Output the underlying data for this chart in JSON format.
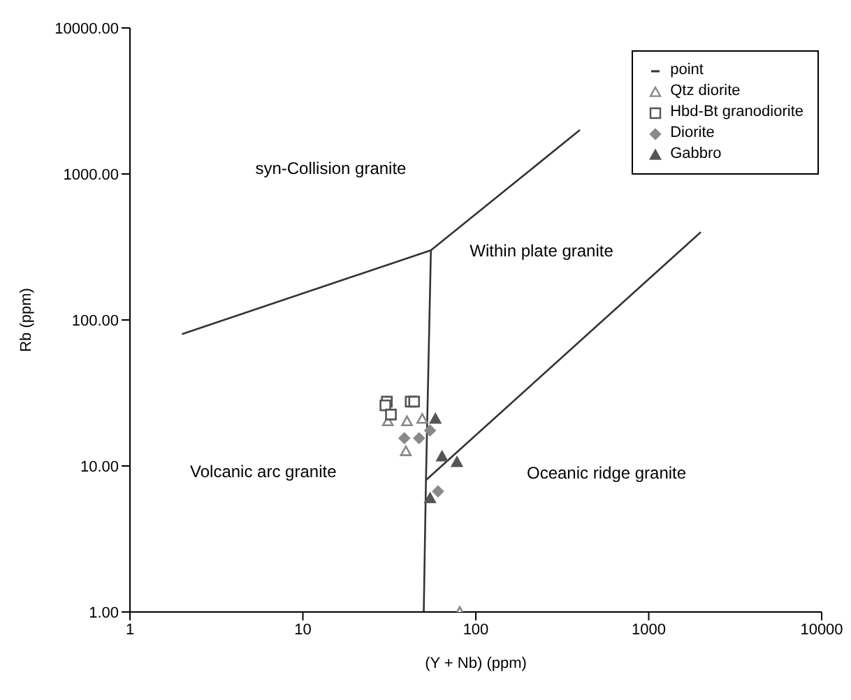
{
  "chart_data": {
    "type": "scatter",
    "xlabel": "(Y + Nb) (ppm)",
    "ylabel": "Rb (ppm)",
    "log": "xy",
    "grid": false,
    "legend": "top right",
    "xlim": [
      1,
      10000
    ],
    "xticks": [
      1,
      10,
      100,
      1000,
      10000
    ],
    "ylim": [
      1,
      10000
    ],
    "yticks": [
      {
        "value": 1,
        "label": "1.00"
      },
      {
        "value": 10,
        "label": "10.00"
      },
      {
        "value": 100,
        "label": "100.00"
      },
      {
        "value": 1000,
        "label": "1000.00"
      },
      {
        "value": 10000,
        "label": "10000.00"
      }
    ],
    "series": [
      {
        "name": "point",
        "type": "line",
        "color": "#333333",
        "marker": "none",
        "x": [
          2,
          55,
          400,
          null,
          55,
          51.5,
          50,
          null,
          51.5,
          2000
        ],
        "values": [
          80,
          300,
          2000,
          null,
          300,
          8,
          1,
          null,
          8,
          400
        ]
      },
      {
        "name": "Qtz diorite",
        "color": "#888888",
        "marker": "triangle",
        "x": [
          40,
          49,
          39.4,
          80.7,
          31
        ],
        "values": [
          20.2,
          21,
          12.6,
          1,
          20.2
        ]
      },
      {
        "name": "Hbd-Bt granodiorite",
        "color": "#555555",
        "marker": "square",
        "x": [
          30.6,
          30,
          32.3,
          42,
          44
        ],
        "values": [
          27.6,
          26,
          22.5,
          27.6,
          27.6
        ]
      },
      {
        "name": "Diorite",
        "color": "#8a8a8a",
        "marker": "diamond",
        "x": [
          38.6,
          47,
          54.4,
          60.5
        ],
        "values": [
          15.5,
          15.5,
          17.5,
          6.7
        ]
      },
      {
        "name": "Gabbro",
        "color": "#555555",
        "marker": "triangle",
        "x": [
          58.4,
          63.8,
          77.8,
          54.4
        ],
        "values": [
          21,
          11.6,
          10.6,
          6
        ]
      }
    ],
    "annotations": [
      "syn-Collision granite",
      "Within plate granite",
      "Volcanic arc granite",
      "Oceanic ridge granite"
    ]
  }
}
